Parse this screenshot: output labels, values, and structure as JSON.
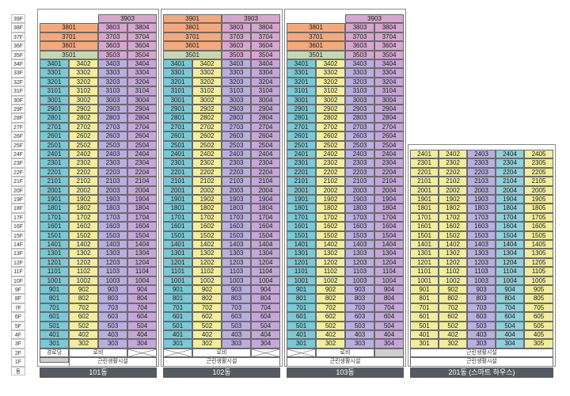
{
  "floors": [
    "39F",
    "38F",
    "37F",
    "36F",
    "35F",
    "34F",
    "33F",
    "32F",
    "31F",
    "30F",
    "29F",
    "28F",
    "27F",
    "26F",
    "25F",
    "24F",
    "23F",
    "22F",
    "21F",
    "20F",
    "19F",
    "18F",
    "17F",
    "16F",
    "15F",
    "14F",
    "13F",
    "12F",
    "11F",
    "10F",
    "9F",
    "8F",
    "7F",
    "6F",
    "5F",
    "4F",
    "3F",
    "2F",
    "1F",
    "동"
  ],
  "colors": {
    "orange": "#f4a97a",
    "pink": "#d7a6d0",
    "sage": "#c6d7b0",
    "teal": "#79c9d6",
    "yellow": "#f2ee9b",
    "lavender": "#b9aee0",
    "purple": "#c4a7d8",
    "lightyellow": "#f1ed9a",
    "lightteal": "#8fd0dc"
  },
  "buildings": [
    {
      "name": "101동",
      "penthouse": [
        {
          "floor": "39F",
          "units": [
            "",
            "",
            "3903",
            ""
          ]
        },
        {
          "floor": "38F",
          "units": [
            "3801",
            "",
            "3803",
            "3804"
          ]
        },
        {
          "floor": "37F",
          "units": [
            "3701",
            "",
            "3703",
            "3704"
          ]
        },
        {
          "floor": "36F",
          "units": [
            "3601",
            "",
            "3603",
            "3604"
          ]
        },
        {
          "floor": "35F",
          "units": [
            "3501",
            "",
            "3503",
            "3504"
          ]
        }
      ],
      "level2": [
        "경로당",
        "로비",
        ""
      ],
      "level1": "근린생활시설"
    },
    {
      "name": "102동",
      "penthouse": [
        {
          "floor": "39F",
          "units": [
            "3901",
            "",
            "3903",
            ""
          ]
        },
        {
          "floor": "38F",
          "units": [
            "3801",
            "",
            "3803",
            "3804"
          ]
        },
        {
          "floor": "37F",
          "units": [
            "3701",
            "",
            "3703",
            "3704"
          ]
        },
        {
          "floor": "36F",
          "units": [
            "3601",
            "",
            "3603",
            "3604"
          ]
        },
        {
          "floor": "35F",
          "units": [
            "3501",
            "",
            "3503",
            "3504"
          ]
        }
      ],
      "level2": [
        "",
        "로비",
        ""
      ],
      "level1": "근린생활시설"
    },
    {
      "name": "103동",
      "penthouse": [
        {
          "floor": "39F",
          "units": [
            "",
            "",
            "3903",
            ""
          ]
        },
        {
          "floor": "38F",
          "units": [
            "3801",
            "",
            "3803",
            "3804"
          ]
        },
        {
          "floor": "37F",
          "units": [
            "3701",
            "",
            "3703",
            "3704"
          ]
        },
        {
          "floor": "36F",
          "units": [
            "3601",
            "",
            "3603",
            "3604"
          ]
        },
        {
          "floor": "35F",
          "units": [
            "3501",
            "",
            "3503",
            "3504"
          ]
        }
      ],
      "level2": [
        "",
        "로비",
        ""
      ],
      "level1": "근린생활시설"
    },
    {
      "name": "201동 (스마트 하우스)",
      "level2": "근린생활시설",
      "level1": "근린생활시설"
    }
  ],
  "standard_floors_10x": [
    "3401",
    "3402",
    "3403",
    "3404",
    "3301",
    "3302",
    "3303",
    "3304",
    "3201",
    "3202",
    "3203",
    "3204",
    "3101",
    "3102",
    "3103",
    "3104",
    "3001",
    "3002",
    "3003",
    "3004",
    "2901",
    "2902",
    "2903",
    "2904",
    "2801",
    "2802",
    "2803",
    "2804",
    "2701",
    "2702",
    "2703",
    "2704",
    "2601",
    "2602",
    "2603",
    "2604",
    "2501",
    "2502",
    "2503",
    "2504",
    "2401",
    "2402",
    "2403",
    "2404",
    "2301",
    "2302",
    "2303",
    "2304",
    "2201",
    "2202",
    "2203",
    "2204",
    "2101",
    "2102",
    "2103",
    "2104",
    "2001",
    "2002",
    "2003",
    "2004",
    "1901",
    "1902",
    "1903",
    "1904",
    "1801",
    "1802",
    "1803",
    "1804",
    "1701",
    "1702",
    "1703",
    "1704",
    "1601",
    "1602",
    "1603",
    "1604",
    "1501",
    "1502",
    "1503",
    "1504",
    "1401",
    "1402",
    "1403",
    "1404",
    "1301",
    "1302",
    "1303",
    "1304",
    "1201",
    "1202",
    "1203",
    "1204",
    "1101",
    "1102",
    "1103",
    "1104",
    "1001",
    "1002",
    "1003",
    "1004"
  ],
  "low_floors": [
    "901",
    "902",
    "903",
    "904",
    "801",
    "802",
    "803",
    "804",
    "701",
    "702",
    "703",
    "704",
    "601",
    "602",
    "603",
    "604",
    "501",
    "502",
    "503",
    "504",
    "401",
    "402",
    "403",
    "404",
    "301",
    "302",
    "303",
    "304"
  ],
  "b201_rows": [
    [
      "2401",
      "2402",
      "2403",
      "2404",
      "2405"
    ],
    [
      "2301",
      "2302",
      "2303",
      "2304",
      "2305"
    ],
    [
      "2201",
      "2202",
      "2203",
      "2204",
      "2205"
    ],
    [
      "2101",
      "2102",
      "2103",
      "2104",
      "2105"
    ],
    [
      "2001",
      "2002",
      "2003",
      "2004",
      "2005"
    ],
    [
      "1901",
      "1902",
      "1903",
      "1904",
      "1905"
    ],
    [
      "1801",
      "1802",
      "1803",
      "1804",
      "1805"
    ],
    [
      "1701",
      "1702",
      "1703",
      "1704",
      "1705"
    ],
    [
      "1601",
      "1602",
      "1603",
      "1604",
      "1605"
    ],
    [
      "1501",
      "1502",
      "1503",
      "1504",
      "1505"
    ],
    [
      "1401",
      "1402",
      "1403",
      "1404",
      "1405"
    ],
    [
      "1301",
      "1302",
      "1303",
      "1304",
      "1305"
    ],
    [
      "1201",
      "1202",
      "1203",
      "1204",
      "1205"
    ],
    [
      "1101",
      "1102",
      "1103",
      "1104",
      "1105"
    ],
    [
      "1001",
      "1002",
      "1003",
      "1004",
      "1005"
    ],
    [
      "901",
      "902",
      "903",
      "904",
      "905"
    ],
    [
      "801",
      "802",
      "803",
      "804",
      "805"
    ],
    [
      "701",
      "702",
      "703",
      "704",
      "705"
    ],
    [
      "601",
      "602",
      "603",
      "604",
      "605"
    ],
    [
      "501",
      "502",
      "503",
      "504",
      "505"
    ],
    [
      "401",
      "402",
      "403",
      "404",
      "405"
    ],
    [
      "301",
      "302",
      "303",
      "304",
      "305"
    ]
  ]
}
